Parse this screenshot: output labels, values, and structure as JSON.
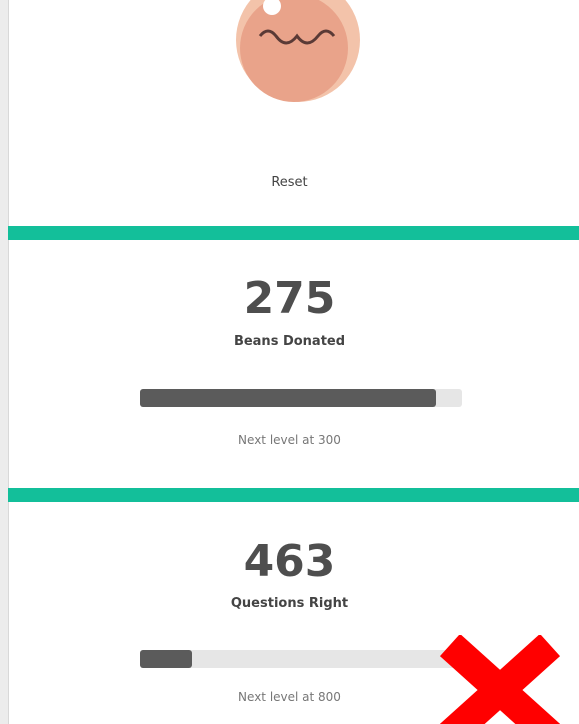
{
  "profile": {
    "action": "Reset"
  },
  "stats": [
    {
      "value": 275,
      "label": "Beans Donated",
      "progress": 92,
      "next_level": "Next level at 300"
    },
    {
      "value": 463,
      "label": "Questions Right",
      "progress": 16,
      "next_level": "Next level at 800"
    }
  ]
}
